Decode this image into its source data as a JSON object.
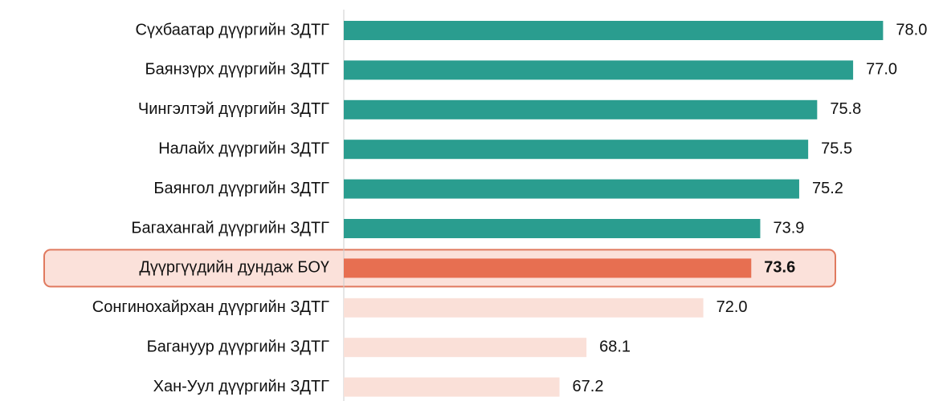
{
  "chart_data": {
    "type": "hbar",
    "categories": [
      "Сүхбаатар дүүргийн ЗДТГ",
      "Баянзүрх дүүргийн ЗДТГ",
      "Чингэлтэй дүүргийн ЗДТГ",
      "Налайх дүүргийн ЗДТГ",
      "Баянгол дүүргийн ЗДТГ",
      "Багахангай дүүргийн ЗДТГ",
      "Дүүргүүдийн дундаж БОҮ",
      "Сонгинохайрхан дүүргийн ЗДТГ",
      "Багануур дүүргийн ЗДТГ",
      "Хан-Уул дүүргийн ЗДТГ"
    ],
    "values": [
      78.0,
      77.0,
      75.8,
      75.5,
      75.2,
      73.9,
      73.6,
      72.0,
      68.1,
      67.2
    ],
    "value_labels": [
      "78.0",
      "77.0",
      "75.8",
      "75.5",
      "75.2",
      "73.9",
      "73.6",
      "72.0",
      "68.1",
      "67.2"
    ],
    "colors": [
      "#2a9d8f",
      "#2a9d8f",
      "#2a9d8f",
      "#2a9d8f",
      "#2a9d8f",
      "#2a9d8f",
      "#e76f51",
      "#fae0d8",
      "#fae0d8",
      "#fae0d8"
    ],
    "highlight_index": 6,
    "xlim": [
      60,
      80
    ]
  }
}
